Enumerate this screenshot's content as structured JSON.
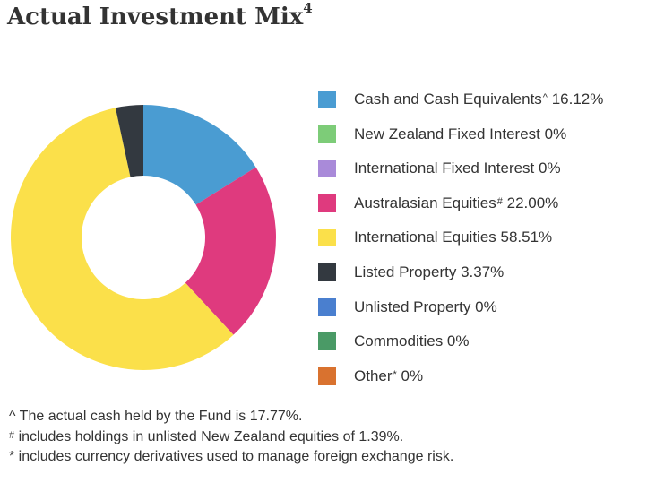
{
  "title": "Actual Investment Mix",
  "title_superscript": "4",
  "chart_data": {
    "type": "pie",
    "variant": "donut",
    "title": "Actual Investment Mix",
    "categories": [
      "Cash and Cash Equivalents",
      "New Zealand Fixed Interest",
      "International Fixed Interest",
      "Australasian Equities",
      "International Equities",
      "Listed Property",
      "Unlisted Property",
      "Commodities",
      "Other"
    ],
    "values": [
      16.12,
      0,
      0,
      22.0,
      58.51,
      3.37,
      0,
      0,
      0
    ],
    "unit": "%",
    "colors": [
      "#4a9cd2",
      "#7dcc78",
      "#a98ad9",
      "#df3a7e",
      "#fbe04a",
      "#333940",
      "#4a7fcf",
      "#4a9a66",
      "#d9722f"
    ],
    "legend_position": "right"
  },
  "legend": [
    {
      "label": "Cash and Cash Equivalents",
      "mark": "^",
      "value": "16.12%"
    },
    {
      "label": "New Zealand Fixed Interest",
      "mark": "",
      "value": "0%"
    },
    {
      "label": "International Fixed Interest",
      "mark": "",
      "value": "0%"
    },
    {
      "label": "Australasian Equities",
      "mark": "#",
      "value": "22.00%"
    },
    {
      "label": "International Equities",
      "mark": "",
      "value": "58.51%"
    },
    {
      "label": "Listed Property",
      "mark": "",
      "value": "3.37%"
    },
    {
      "label": "Unlisted Property",
      "mark": "",
      "value": "0%"
    },
    {
      "label": "Commodities",
      "mark": "",
      "value": "0%"
    },
    {
      "label": "Other",
      "mark": "*",
      "value": "0%"
    }
  ],
  "notes": [
    {
      "mark": "^",
      "text": "The actual cash held by the Fund is 17.77%."
    },
    {
      "mark": "#",
      "text": "includes holdings in unlisted New Zealand equities of 1.39%."
    },
    {
      "mark": "*",
      "text": "includes currency derivatives used to manage foreign exchange risk."
    }
  ]
}
